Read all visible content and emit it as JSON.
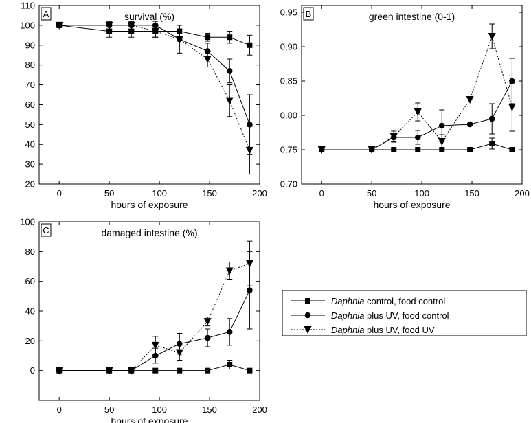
{
  "chart_data": [
    {
      "panel": "A",
      "type": "line",
      "title": "survival (%)",
      "xlabel": "hours of exposure",
      "ylabel": "",
      "xlim": [
        -20,
        200
      ],
      "ylim": [
        20,
        110
      ],
      "xticks": [
        0,
        50,
        100,
        150,
        200
      ],
      "yticks": [
        20,
        30,
        40,
        50,
        60,
        70,
        80,
        90,
        100,
        110
      ],
      "decimal_comma": false,
      "series": [
        {
          "key": "control",
          "marker": "square",
          "dashed": false,
          "x": [
            0,
            50,
            72,
            96,
            120,
            148,
            170,
            190
          ],
          "y": [
            100,
            97,
            97,
            97,
            97,
            94,
            94,
            90
          ],
          "err": [
            0,
            3,
            3,
            3,
            3,
            2,
            3,
            5
          ]
        },
        {
          "key": "uv_food_control",
          "marker": "circle",
          "dashed": false,
          "x": [
            0,
            50,
            72,
            96,
            120,
            148,
            170,
            190
          ],
          "y": [
            100,
            100,
            100,
            100,
            93,
            87,
            77,
            50
          ],
          "err": [
            0,
            2,
            2,
            2,
            5,
            4,
            6,
            15
          ]
        },
        {
          "key": "uv_food_uv",
          "marker": "triangle",
          "dashed": true,
          "x": [
            0,
            50,
            72,
            96,
            120,
            148,
            170,
            190
          ],
          "y": [
            100,
            100,
            100,
            97,
            93,
            83,
            62,
            37
          ],
          "err": [
            0,
            2,
            2,
            3,
            7,
            4,
            8,
            12
          ]
        }
      ]
    },
    {
      "panel": "B",
      "type": "line",
      "title": "green intestine (0-1)",
      "xlabel": "hours of exposure",
      "ylabel": "",
      "xlim": [
        -20,
        200
      ],
      "ylim": [
        0.7,
        0.96
      ],
      "xticks": [
        0,
        50,
        100,
        150,
        200
      ],
      "yticks": [
        0.7,
        0.75,
        0.8,
        0.85,
        0.9,
        0.95
      ],
      "ytick_decimals": 2,
      "decimal_comma": true,
      "series": [
        {
          "key": "control",
          "marker": "square",
          "dashed": false,
          "x": [
            0,
            50,
            72,
            96,
            120,
            148,
            170,
            190
          ],
          "y": [
            0.75,
            0.75,
            0.75,
            0.75,
            0.75,
            0.75,
            0.759,
            0.75
          ],
          "err": [
            0,
            0,
            0,
            0,
            0,
            0,
            0.008,
            0
          ]
        },
        {
          "key": "uv_food_control",
          "marker": "circle",
          "dashed": false,
          "x": [
            0,
            50,
            72,
            96,
            120,
            148,
            170,
            190
          ],
          "y": [
            0.75,
            0.75,
            0.768,
            0.768,
            0.785,
            0.787,
            0.795,
            0.85
          ],
          "err": [
            0,
            0,
            0.006,
            0.01,
            0.023,
            0,
            0.022,
            0.033
          ]
        },
        {
          "key": "uv_food_uv",
          "marker": "triangle",
          "dashed": true,
          "x": [
            0,
            50,
            72,
            96,
            120,
            148,
            170,
            190
          ],
          "y": [
            0.75,
            0.75,
            0.769,
            0.805,
            0.762,
            0.823,
            0.915,
            0.812
          ],
          "err": [
            0,
            0,
            0.008,
            0.013,
            0.01,
            0,
            0.018,
            0.035
          ]
        }
      ]
    },
    {
      "panel": "C",
      "type": "line",
      "title": "damaged intestine (%)",
      "xlabel": "hours of exposure",
      "ylabel": "",
      "xlim": [
        -20,
        200
      ],
      "ylim": [
        -20,
        100
      ],
      "xticks": [
        0,
        50,
        100,
        150,
        200
      ],
      "yticks": [
        0,
        20,
        40,
        60,
        80,
        100
      ],
      "decimal_comma": false,
      "series": [
        {
          "key": "control",
          "marker": "square",
          "dashed": false,
          "x": [
            0,
            50,
            72,
            96,
            120,
            148,
            170,
            190
          ],
          "y": [
            0,
            0,
            0,
            0,
            0,
            0,
            4,
            0
          ],
          "err": [
            0,
            0,
            0,
            0,
            0,
            0,
            3,
            0
          ]
        },
        {
          "key": "uv_food_control",
          "marker": "circle",
          "dashed": false,
          "x": [
            0,
            50,
            72,
            96,
            120,
            148,
            170,
            190
          ],
          "y": [
            0,
            0,
            0,
            10,
            18,
            22,
            26,
            54
          ],
          "err": [
            0,
            0,
            0,
            5,
            7,
            6,
            9,
            26
          ]
        },
        {
          "key": "uv_food_uv",
          "marker": "triangle",
          "dashed": true,
          "x": [
            0,
            50,
            72,
            96,
            120,
            148,
            170,
            190
          ],
          "y": [
            0,
            0,
            0,
            17,
            12,
            33,
            67,
            72
          ],
          "err": [
            0,
            0,
            0,
            6,
            5,
            3,
            6,
            15
          ]
        }
      ]
    }
  ],
  "legend": {
    "position": "right",
    "items": [
      {
        "key": "control",
        "marker": "square",
        "dashed": false,
        "italic": "Daphnia",
        "rest": " control, food control"
      },
      {
        "key": "uv_food_control",
        "marker": "circle",
        "dashed": false,
        "italic": "Daphnia",
        "rest": " plus UV, food control"
      },
      {
        "key": "uv_food_uv",
        "marker": "triangle",
        "dashed": true,
        "italic": "Daphnia",
        "rest": " plus UV, food UV"
      }
    ]
  }
}
